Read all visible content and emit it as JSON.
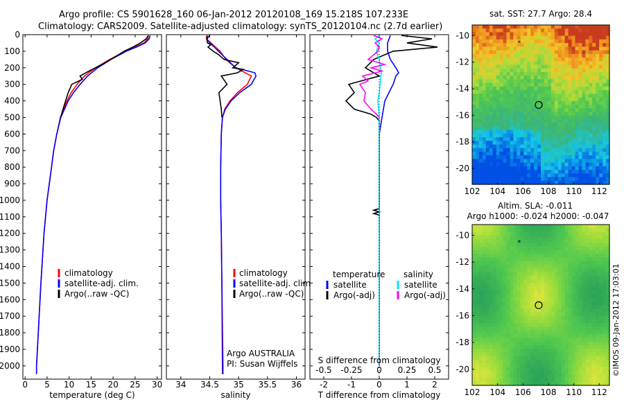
{
  "header": {
    "line1": "Argo profile: CS 5901628_160 06-Jan-2012 20120108_169 15.218S 107.233E",
    "line2": "Climatology: CARS2009. Satellite-adjusted climatology: synTS_20120104.nc (2.7d earlier)"
  },
  "colors": {
    "climatology": "#ff0000",
    "satellite": "#0000ff",
    "argo": "#000000",
    "satellite_salinity": "#00e5ff",
    "argo_salinity": "#ff00ff"
  },
  "chart_data": [
    {
      "type": "line",
      "name": "temperature-profile",
      "xlabel": "temperature (deg C)",
      "xlim": [
        -0.5,
        31
      ],
      "xticks": [
        0,
        5,
        10,
        15,
        20,
        25,
        30
      ],
      "ylim": [
        0,
        2080
      ],
      "yticks": [
        0,
        100,
        200,
        300,
        400,
        500,
        600,
        700,
        800,
        900,
        1000,
        1100,
        1200,
        1300,
        1400,
        1500,
        1600,
        1700,
        1800,
        1900,
        2000
      ],
      "legend": [
        "climatology",
        "satellite-adj. clim.",
        "Argo(..raw -QC)"
      ],
      "series": [
        {
          "name": "climatology",
          "color": "#ff0000",
          "depth": [
            5,
            25,
            50,
            75,
            100,
            150,
            200,
            250,
            300,
            350,
            400,
            500,
            600,
            700,
            800,
            1000,
            1200,
            1500,
            2000,
            2050
          ],
          "values": [
            28.0,
            27.9,
            27.0,
            25.0,
            22.8,
            19.2,
            16.0,
            13.5,
            11.8,
            10.5,
            9.5,
            8.0,
            7.2,
            6.5,
            6.0,
            5.0,
            4.3,
            3.6,
            2.6,
            2.6
          ]
        },
        {
          "name": "satellite-adj. clim.",
          "color": "#0000ff",
          "depth": [
            5,
            25,
            50,
            75,
            100,
            150,
            200,
            250,
            300,
            350,
            400,
            500,
            600,
            700,
            800,
            1000,
            1200,
            1500,
            2000,
            2050
          ],
          "values": [
            28.4,
            28.2,
            27.3,
            25.3,
            23.0,
            19.5,
            16.5,
            14.2,
            12.5,
            11.0,
            9.8,
            8.1,
            7.2,
            6.5,
            6.0,
            5.0,
            4.3,
            3.6,
            2.6,
            2.6
          ]
        },
        {
          "name": "Argo(..raw -QC)",
          "color": "#000000",
          "depth": [
            5,
            25,
            50,
            75,
            100,
            150,
            180,
            220,
            250,
            270,
            300,
            350,
            400,
            450,
            500
          ],
          "values": [
            28.0,
            27.5,
            26.2,
            24.5,
            22.5,
            19.5,
            17.5,
            14.5,
            12.5,
            13.0,
            10.6,
            9.8,
            9.2,
            8.6,
            8.1
          ]
        }
      ]
    },
    {
      "type": "line",
      "name": "salinity-profile",
      "xlabel": "salinity",
      "xlim": [
        33.75,
        36.15
      ],
      "xticks": [
        34,
        34.5,
        35,
        35.5,
        36
      ],
      "ylim": [
        0,
        2080
      ],
      "legend": [
        "climatology",
        "satellite-adj. clim.",
        "Argo(..raw -QC)"
      ],
      "annotation": [
        "Argo AUSTRALIA",
        "PI: Susan Wijffels"
      ],
      "series": [
        {
          "name": "climatology",
          "color": "#ff0000",
          "depth": [
            5,
            25,
            50,
            75,
            100,
            150,
            200,
            250,
            300,
            350,
            400,
            450,
            500,
            600,
            800,
            1000,
            1200,
            1500,
            2000,
            2050
          ],
          "values": [
            34.45,
            34.44,
            34.52,
            34.6,
            34.68,
            34.78,
            34.95,
            35.22,
            35.15,
            34.98,
            34.85,
            34.76,
            34.72,
            34.7,
            34.69,
            34.69,
            34.7,
            34.71,
            34.73,
            34.73
          ]
        },
        {
          "name": "satellite-adj. clim.",
          "color": "#0000ff",
          "depth": [
            5,
            25,
            50,
            75,
            100,
            150,
            200,
            230,
            250,
            300,
            350,
            400,
            450,
            500,
            600,
            800,
            1000,
            1200,
            1500,
            2000,
            2050
          ],
          "values": [
            34.46,
            34.45,
            34.5,
            34.58,
            34.65,
            34.8,
            34.95,
            35.28,
            35.3,
            35.22,
            35.02,
            34.87,
            34.77,
            34.72,
            34.7,
            34.69,
            34.69,
            34.7,
            34.71,
            34.72,
            34.72
          ]
        },
        {
          "name": "Argo(..raw -QC)",
          "color": "#000000",
          "depth": [
            5,
            25,
            50,
            60,
            75,
            100,
            120,
            150,
            170,
            200,
            210,
            230,
            250,
            300,
            350,
            400,
            450,
            500
          ],
          "values": [
            34.5,
            34.45,
            34.46,
            34.52,
            34.47,
            34.56,
            34.65,
            34.75,
            35.0,
            34.9,
            35.08,
            34.98,
            34.7,
            34.8,
            34.66,
            34.68,
            34.7,
            34.71
          ]
        }
      ]
    },
    {
      "type": "line",
      "name": "difference-profile",
      "xlabel": "T difference from climatology",
      "xlabel2": "S difference from climatology",
      "xlim": [
        -2.5,
        2.5
      ],
      "xticks": [
        -2,
        -1,
        0,
        1,
        2
      ],
      "xticks2": [
        -0.5,
        -0.25,
        0,
        0.25,
        0.5
      ],
      "ylim": [
        0,
        2080
      ],
      "legend_titles": [
        "temperature",
        "salinity"
      ],
      "legend": [
        "satellite",
        "Argo(-adj)",
        "satellite",
        "Argo(-adj)"
      ],
      "series": [
        {
          "name": "T satellite",
          "color": "#0000ff",
          "depth": [
            5,
            50,
            100,
            150,
            200,
            230,
            250,
            300,
            400,
            500,
            600,
            800,
            1000,
            1500,
            2000
          ],
          "values": [
            0.4,
            0.3,
            0.3,
            0.4,
            0.6,
            0.7,
            0.6,
            0.5,
            0.2,
            0.1,
            0,
            0,
            0,
            0,
            0
          ]
        },
        {
          "name": "T Argo(-adj)",
          "color": "#000000",
          "depth": [
            5,
            25,
            50,
            75,
            100,
            150,
            200,
            250,
            300,
            350,
            400,
            450,
            480,
            500,
            520,
            550,
            1050,
            1060,
            1070,
            1080,
            1090,
            1100
          ],
          "values": [
            0.8,
            1.9,
            1.0,
            2.1,
            0.5,
            -0.2,
            -0.5,
            0.0,
            -1.1,
            -0.9,
            -1.2,
            -0.9,
            -0.3,
            -0.1,
            0.0,
            0.0,
            0.0,
            -0.2,
            0.0,
            -0.2,
            0.0,
            0.0
          ]
        },
        {
          "name": "S satellite",
          "color": "#00e5ff",
          "depth": [
            5,
            25,
            50,
            100,
            150,
            200,
            230,
            250,
            300,
            350,
            400,
            450,
            500,
            600,
            800,
            1000,
            1500,
            2000
          ],
          "values": [
            0.0,
            -0.15,
            0.0,
            -0.1,
            0.0,
            0.05,
            0.08,
            0.06,
            0.03,
            0.0,
            -0.05,
            -0.02,
            0.0,
            0.0,
            0.0,
            0.0,
            0.0,
            0.0
          ]
        },
        {
          "name": "S Argo(-adj)",
          "color": "#ff00ff",
          "depth": [
            5,
            25,
            50,
            75,
            100,
            150,
            180,
            200,
            220,
            250,
            280,
            300,
            350,
            400,
            450,
            480,
            500
          ],
          "values": [
            -0.2,
            0.1,
            -0.15,
            0.0,
            -0.05,
            -0.4,
            0.2,
            -0.3,
            0.1,
            -0.6,
            -0.4,
            -0.7,
            -0.5,
            -0.55,
            -0.3,
            -0.1,
            0.0
          ]
        }
      ]
    },
    {
      "type": "heatmap",
      "name": "sst-map",
      "title": "sat. SST: 27.7 Argo: 28.4",
      "xlim": [
        102,
        112.8
      ],
      "ylim": [
        -21.2,
        -9.2
      ],
      "xticks": [
        102,
        104,
        106,
        108,
        110,
        112
      ],
      "yticks": [
        -10,
        -12,
        -14,
        -16,
        -18,
        -20
      ],
      "argo_position": {
        "lon": 107.233,
        "lat": -15.218
      },
      "star_position": {
        "lon": 105.7,
        "lat": -10.5
      }
    },
    {
      "type": "heatmap",
      "name": "sla-map",
      "title": "Altim. SLA: -0.011",
      "subtitle": "Argo h1000: -0.024 h2000: -0.047",
      "xlim": [
        102,
        112.8
      ],
      "ylim": [
        -21.2,
        -9.2
      ],
      "xticks": [
        102,
        104,
        106,
        108,
        110,
        112
      ],
      "yticks": [
        -10,
        -12,
        -14,
        -16,
        -18,
        -20
      ],
      "argo_position": {
        "lon": 107.233,
        "lat": -15.218
      },
      "star_position": {
        "lon": 105.7,
        "lat": -10.5
      }
    }
  ],
  "footer": {
    "credit": "©IMOS 09-Jan-2012 17:03:01"
  }
}
